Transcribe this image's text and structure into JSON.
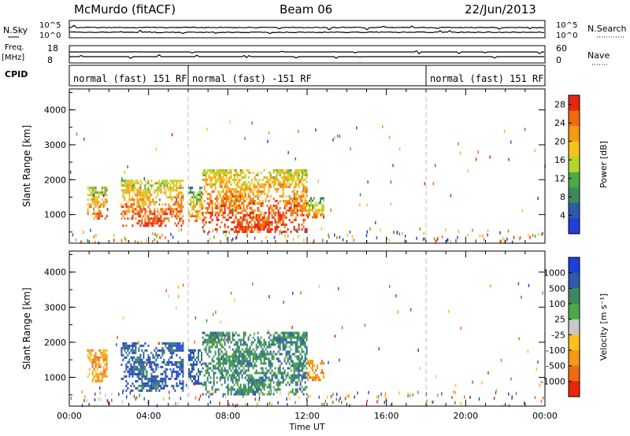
{
  "header": {
    "station": "McMurdo (fitACF)",
    "beam": "Beam 06",
    "date": "22/Jun/2013"
  },
  "strips": {
    "nsky_label": "N.Sky",
    "nsearch_label": "N.Search",
    "noise_ticks_left": [
      "10^5",
      "10^0"
    ],
    "noise_ticks_right": [
      "10^5",
      "10^0"
    ],
    "freq_label": "Freq.",
    "freq_unit": "[MHz]",
    "freq_ticks": [
      "18",
      "8"
    ],
    "nave_label": "Nave",
    "nave_ticks": [
      "60",
      "0"
    ],
    "cpid_label": "CPID",
    "cpid_segments": [
      {
        "label": "normal (fast) 151 RF",
        "start_hour": 0,
        "end_hour": 6
      },
      {
        "label": "normal (fast) -151 RF",
        "start_hour": 6,
        "end_hour": 18
      },
      {
        "label": "normal (fast) 151 RF",
        "start_hour": 18,
        "end_hour": 24
      }
    ]
  },
  "chart_data": [
    {
      "type": "heatmap",
      "title": "",
      "ylabel": "Slant Range [km]",
      "xlabel": "",
      "xlim": [
        0,
        24
      ],
      "ylim": [
        180,
        4600
      ],
      "yticks": [
        "1000",
        "2000",
        "3000",
        "4000"
      ],
      "colorbar_label": "Power [dB]",
      "colorbar_ticks": [
        "4",
        "8",
        "12",
        "16",
        "20",
        "24",
        "28"
      ],
      "colorbar_range": [
        0,
        30
      ],
      "colors": [
        "#1f3fd8",
        "#2e5aa8",
        "#3b8a5e",
        "#4ea84a",
        "#b6d42a",
        "#f7c21a",
        "#f59a14",
        "#ef6a12",
        "#e8260e"
      ],
      "echo_regions": [
        {
          "start_hour": 0.9,
          "end_hour": 1.9,
          "range_min": 900,
          "range_max": 1800,
          "value": 18
        },
        {
          "start_hour": 2.6,
          "end_hour": 5.7,
          "range_min": 650,
          "range_max": 2000,
          "value": 20
        },
        {
          "start_hour": 6.0,
          "end_hour": 6.7,
          "range_min": 800,
          "range_max": 1800,
          "value": 14
        },
        {
          "start_hour": 6.7,
          "end_hour": 12.0,
          "range_min": 500,
          "range_max": 2300,
          "value": 21
        },
        {
          "start_hour": 12.0,
          "end_hour": 12.8,
          "range_min": 950,
          "range_max": 1500,
          "value": 14
        }
      ]
    },
    {
      "type": "heatmap",
      "title": "",
      "ylabel": "Slant Range [km]",
      "xlabel": "Time UT",
      "xlim": [
        0,
        24
      ],
      "ylim": [
        180,
        4600
      ],
      "xticks": [
        "00:00",
        "04:00",
        "08:00",
        "12:00",
        "16:00",
        "20:00",
        "00:00"
      ],
      "yticks": [
        "1000",
        "2000",
        "3000",
        "4000"
      ],
      "colorbar_label": "Velocity [m s⁻¹]",
      "colorbar_ticks": [
        "1000",
        "500",
        "100",
        "25",
        "-25",
        "-100",
        "-500",
        "-1000"
      ],
      "colors": [
        "#1f3fd8",
        "#2e5aa8",
        "#3b8a5e",
        "#4ea84a",
        "#c8c8c8",
        "#f7c21a",
        "#f59a14",
        "#ef6a12",
        "#e8260e"
      ],
      "echo_regions": [
        {
          "start_hour": 0.9,
          "end_hour": 1.9,
          "range_min": 900,
          "range_max": 1800,
          "value": -100
        },
        {
          "start_hour": 2.6,
          "end_hour": 5.7,
          "range_min": 650,
          "range_max": 2000,
          "value": 500
        },
        {
          "start_hour": 6.0,
          "end_hour": 6.7,
          "range_min": 800,
          "range_max": 1800,
          "value": 500
        },
        {
          "start_hour": 6.7,
          "end_hour": 12.0,
          "range_min": 500,
          "range_max": 2300,
          "value": 100
        },
        {
          "start_hour": 12.0,
          "end_hour": 12.8,
          "range_min": 950,
          "range_max": 1500,
          "value": -100
        }
      ]
    }
  ]
}
